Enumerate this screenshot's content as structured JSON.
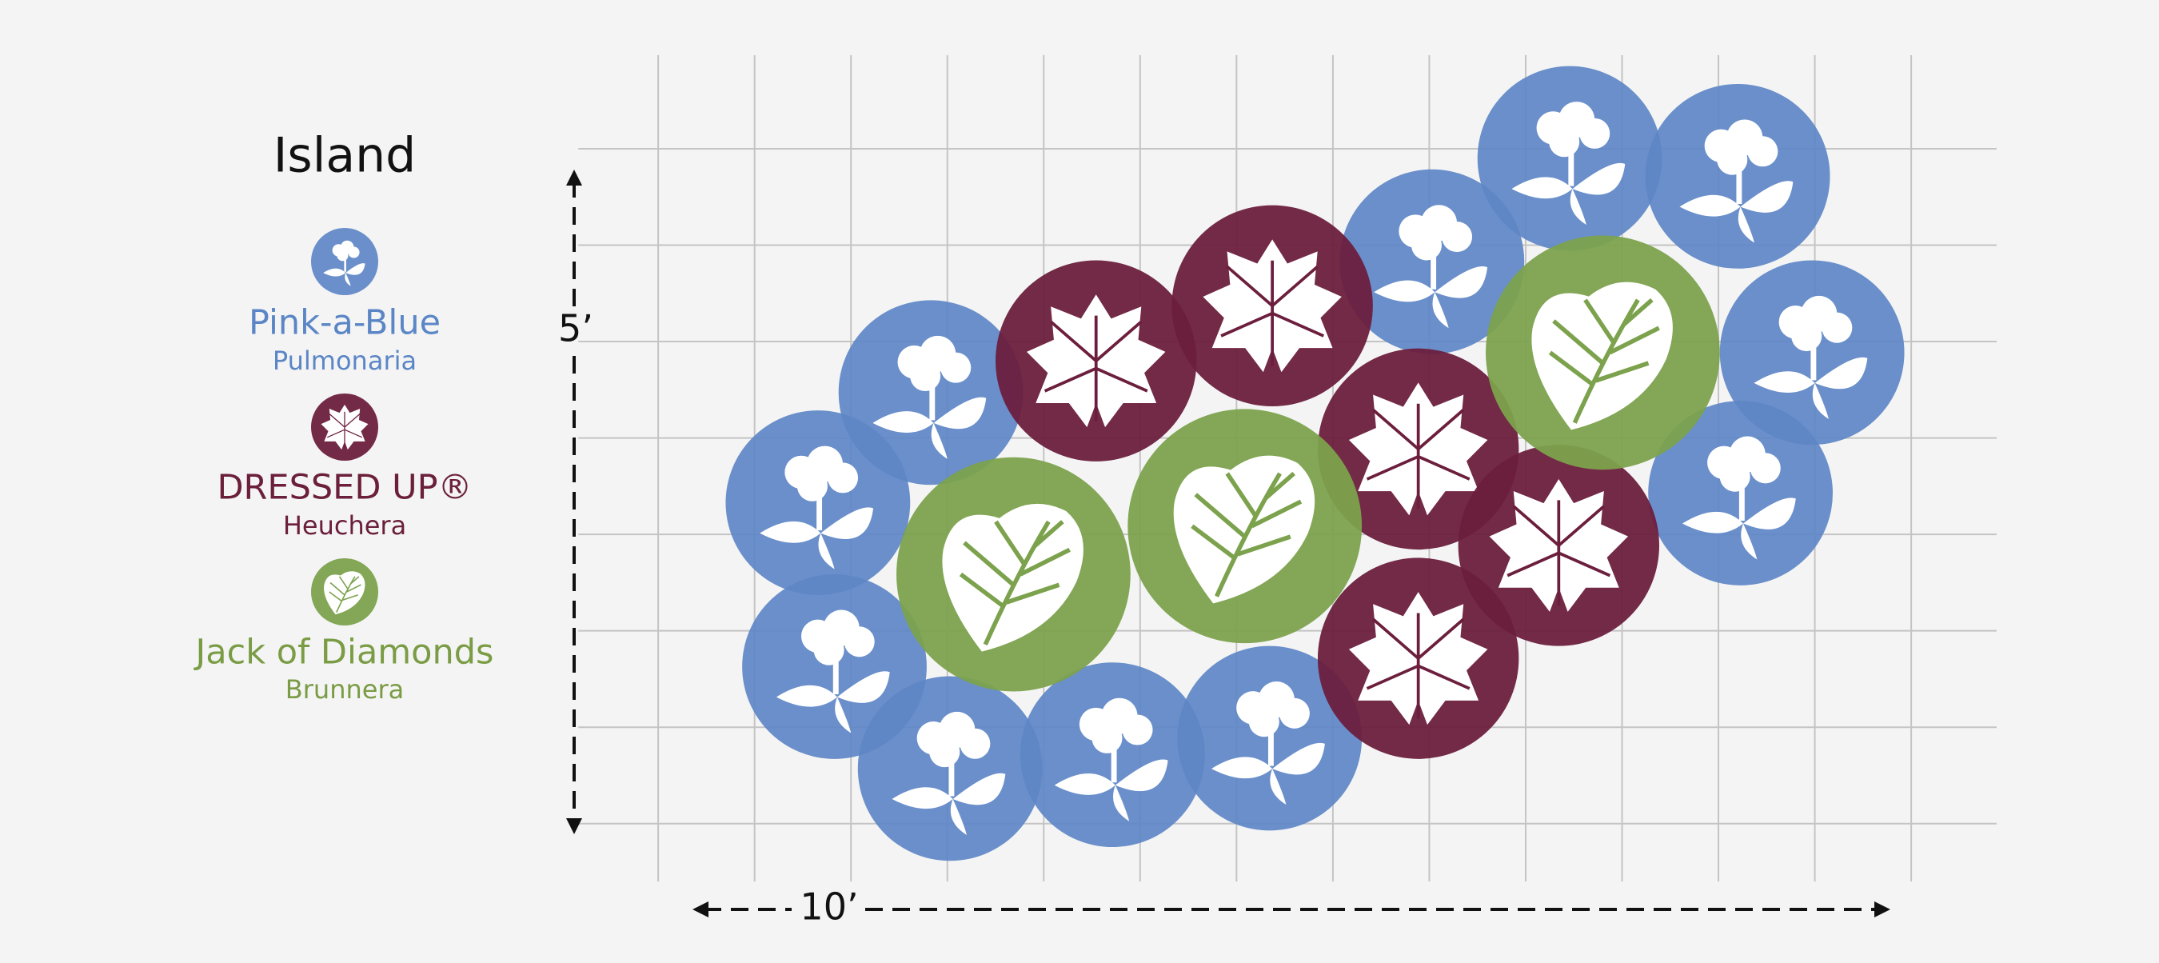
{
  "title": "Island",
  "legend": [
    {
      "name": "Pink-a-Blue",
      "species": "Pulmonaria"
    },
    {
      "name": "DRESSED UP®",
      "species": "Heuchera"
    },
    {
      "name": "Jack of Diamonds",
      "species": "Brunnera"
    }
  ],
  "dimensions": {
    "height": "5’",
    "width": "10’"
  }
}
